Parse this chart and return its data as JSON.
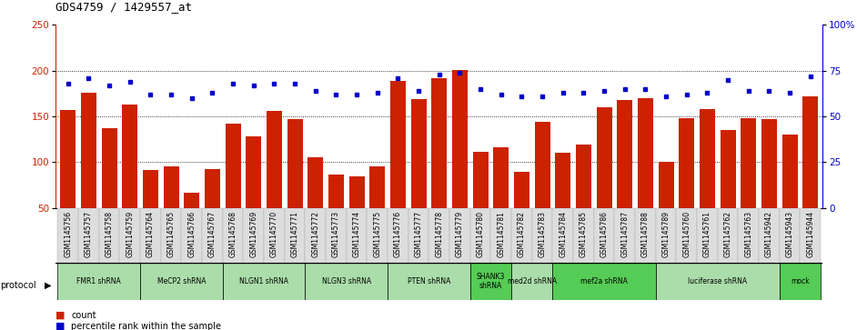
{
  "title": "GDS4759 / 1429557_at",
  "samples": [
    "GSM1145756",
    "GSM1145757",
    "GSM1145758",
    "GSM1145759",
    "GSM1145764",
    "GSM1145765",
    "GSM1145766",
    "GSM1145767",
    "GSM1145768",
    "GSM1145769",
    "GSM1145770",
    "GSM1145771",
    "GSM1145772",
    "GSM1145773",
    "GSM1145774",
    "GSM1145775",
    "GSM1145776",
    "GSM1145777",
    "GSM1145778",
    "GSM1145779",
    "GSM1145780",
    "GSM1145781",
    "GSM1145782",
    "GSM1145783",
    "GSM1145784",
    "GSM1145785",
    "GSM1145786",
    "GSM1145787",
    "GSM1145788",
    "GSM1145789",
    "GSM1145760",
    "GSM1145761",
    "GSM1145762",
    "GSM1145763",
    "GSM1145942",
    "GSM1145943",
    "GSM1145944"
  ],
  "counts": [
    157,
    176,
    137,
    163,
    91,
    95,
    67,
    92,
    142,
    128,
    156,
    147,
    105,
    86,
    84,
    95,
    189,
    169,
    192,
    201,
    111,
    116,
    89,
    144,
    110,
    119,
    160,
    168,
    170,
    100,
    148,
    158,
    135,
    148,
    147,
    130,
    172
  ],
  "percentiles": [
    68,
    71,
    67,
    69,
    62,
    62,
    60,
    63,
    68,
    67,
    68,
    68,
    64,
    62,
    62,
    63,
    71,
    64,
    73,
    74,
    65,
    62,
    61,
    61,
    63,
    63,
    64,
    65,
    65,
    61,
    62,
    63,
    70,
    64,
    64,
    63,
    72
  ],
  "protocols": [
    {
      "label": "FMR1 shRNA",
      "start": 0,
      "end": 4,
      "color": "#aaddaa"
    },
    {
      "label": "MeCP2 shRNA",
      "start": 4,
      "end": 8,
      "color": "#aaddaa"
    },
    {
      "label": "NLGN1 shRNA",
      "start": 8,
      "end": 12,
      "color": "#aaddaa"
    },
    {
      "label": "NLGN3 shRNA",
      "start": 12,
      "end": 16,
      "color": "#aaddaa"
    },
    {
      "label": "PTEN shRNA",
      "start": 16,
      "end": 20,
      "color": "#aaddaa"
    },
    {
      "label": "SHANK3\nshRNA",
      "start": 20,
      "end": 22,
      "color": "#55cc55"
    },
    {
      "label": "med2d shRNA",
      "start": 22,
      "end": 24,
      "color": "#aaddaa"
    },
    {
      "label": "mef2a shRNA",
      "start": 24,
      "end": 29,
      "color": "#55cc55"
    },
    {
      "label": "luciferase shRNA",
      "start": 29,
      "end": 35,
      "color": "#aaddaa"
    },
    {
      "label": "mock",
      "start": 35,
      "end": 37,
      "color": "#55cc55"
    }
  ],
  "bar_color": "#cc2200",
  "dot_color": "#0000cc",
  "ylim_left": [
    50,
    250
  ],
  "ylim_right": [
    0,
    100
  ],
  "yticks_left": [
    50,
    100,
    150,
    200,
    250
  ],
  "yticks_right": [
    0,
    25,
    50,
    75,
    100
  ],
  "ytick_labels_right": [
    "0",
    "25",
    "50",
    "75",
    "100%"
  ],
  "grid_values": [
    100,
    150,
    200
  ],
  "background_color": "#ffffff",
  "xticklabel_bg": "#dddddd"
}
